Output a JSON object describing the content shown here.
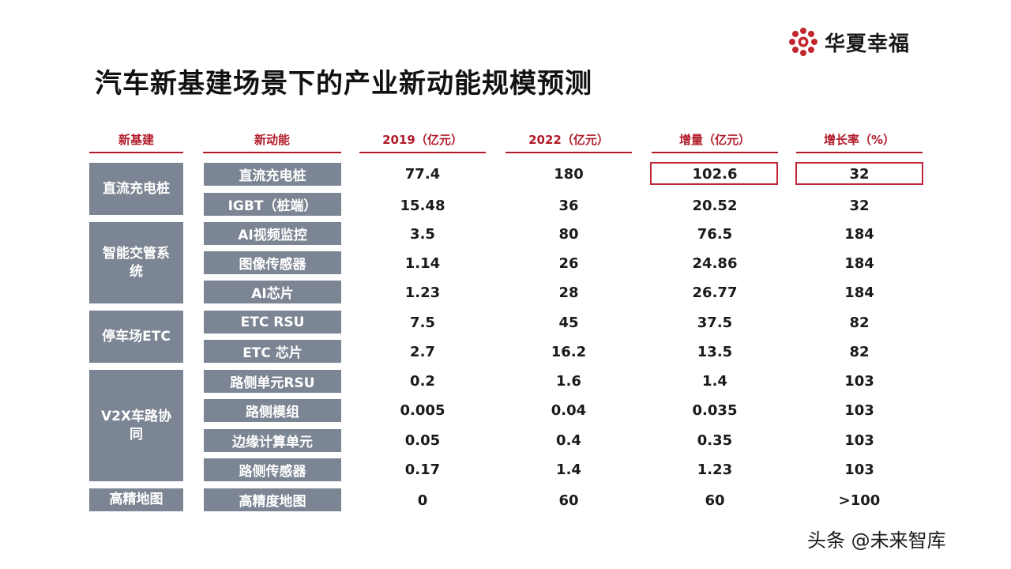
{
  "logo": {
    "name": "华夏幸福"
  },
  "title": "汽车新基建场景下的产业新动能规模预测",
  "headers": {
    "infra": "新基建",
    "momentum": "新动能",
    "y2019": "2019（亿元）",
    "y2022": "2022（亿元）",
    "increase": "增量（亿元）",
    "growth": "增长率（%）"
  },
  "groups": [
    {
      "label": "直流充电桩"
    },
    {
      "label": "智能交管系统"
    },
    {
      "label": "停车场ETC"
    },
    {
      "label": "V2X车路协同"
    },
    {
      "label": "高精地图"
    }
  ],
  "rows": [
    {
      "name": "直流充电桩",
      "v2019": "77.4",
      "v2022": "180",
      "increase": "102.6",
      "growth": "32"
    },
    {
      "name": "IGBT（桩端）",
      "v2019": "15.48",
      "v2022": "36",
      "increase": "20.52",
      "growth": "32"
    },
    {
      "name": "AI视频监控",
      "v2019": "3.5",
      "v2022": "80",
      "increase": "76.5",
      "growth": "184"
    },
    {
      "name": "图像传感器",
      "v2019": "1.14",
      "v2022": "26",
      "increase": "24.86",
      "growth": "184"
    },
    {
      "name": "AI芯片",
      "v2019": "1.23",
      "v2022": "28",
      "increase": "26.77",
      "growth": "184"
    },
    {
      "name": "ETC RSU",
      "v2019": "7.5",
      "v2022": "45",
      "increase": "37.5",
      "growth": "82"
    },
    {
      "name": "ETC 芯片",
      "v2019": "2.7",
      "v2022": "16.2",
      "increase": "13.5",
      "growth": "82"
    },
    {
      "name": "路侧单元RSU",
      "v2019": "0.2",
      "v2022": "1.6",
      "increase": "1.4",
      "growth": "103"
    },
    {
      "name": "路侧模组",
      "v2019": "0.005",
      "v2022": "0.04",
      "increase": "0.035",
      "growth": "103"
    },
    {
      "name": "边缘计算单元",
      "v2019": "0.05",
      "v2022": "0.4",
      "increase": "0.35",
      "growth": "103"
    },
    {
      "name": "路侧传感器",
      "v2019": "0.17",
      "v2022": "1.4",
      "increase": "1.23",
      "growth": "103"
    },
    {
      "name": "高精度地图",
      "v2019": "0",
      "v2022": "60",
      "increase": "60",
      "growth": ">100"
    }
  ],
  "watermark": "头条 @未来智库",
  "colors": {
    "accent": "#b11c2a",
    "box": "#7c8593"
  }
}
